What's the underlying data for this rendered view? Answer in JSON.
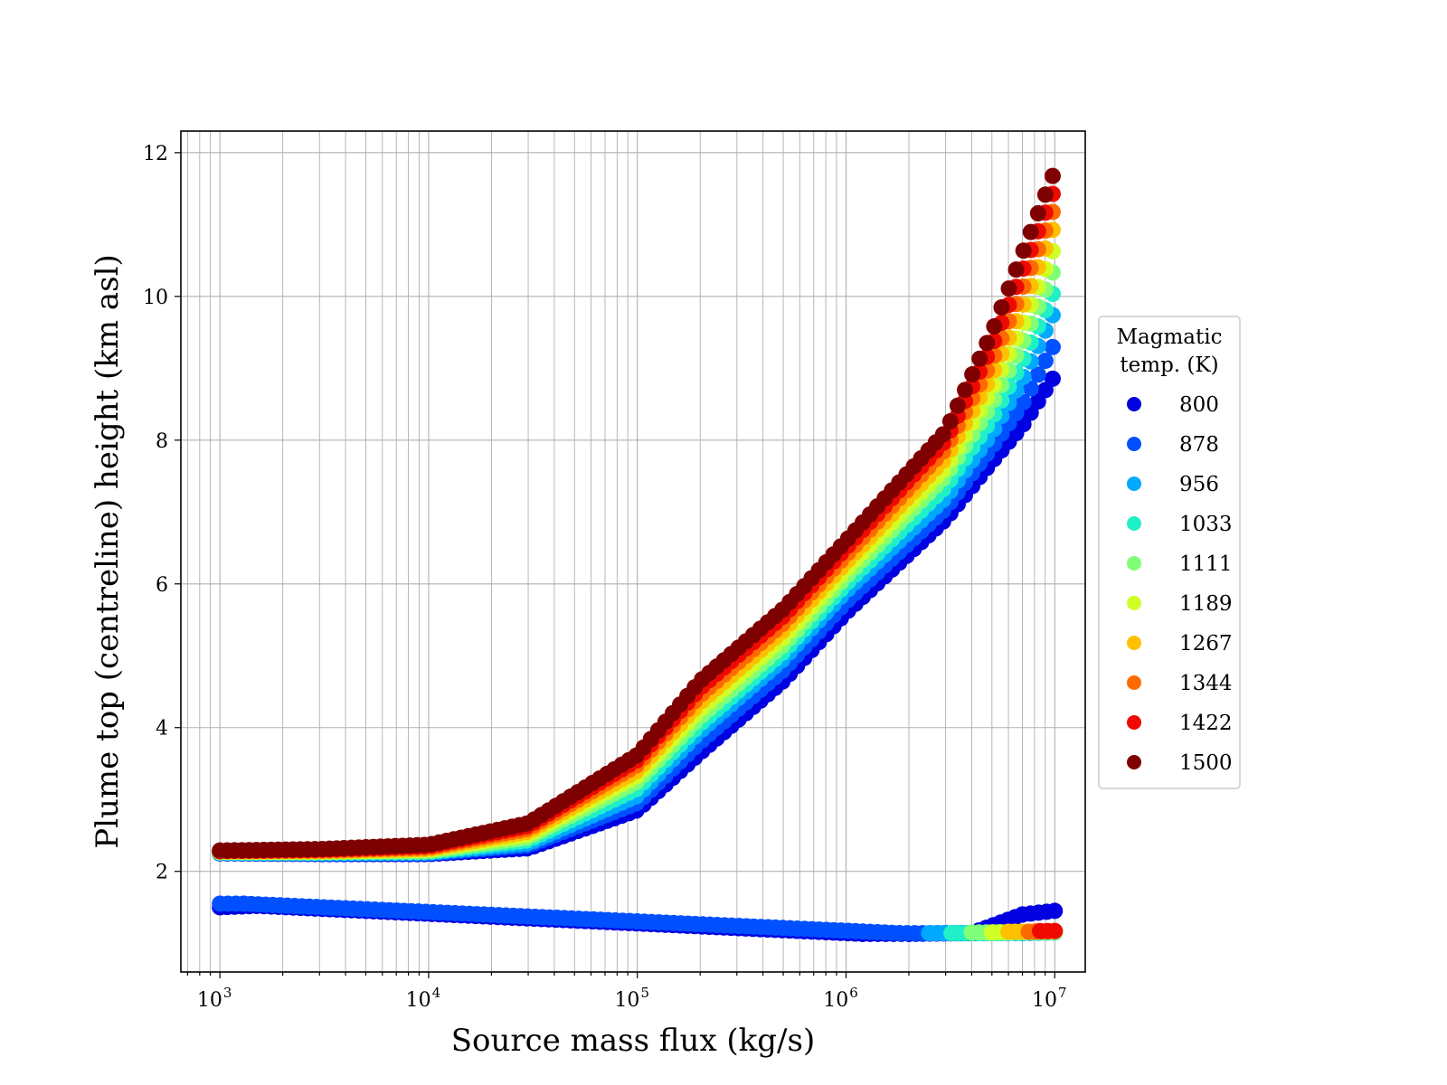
{
  "chart_data": {
    "type": "scatter",
    "xlabel": "Source mass flux (kg/s)",
    "ylabel": "Plume top (centreline) height (km asl)",
    "x_scale": "log",
    "xlim": [
      650,
      14000000
    ],
    "ylim": [
      0.6,
      12.3
    ],
    "x_ticks": [
      1000,
      10000,
      100000,
      1000000,
      10000000
    ],
    "x_tick_labels": [
      "10",
      "10",
      "10",
      "10",
      "10"
    ],
    "x_tick_exponents": [
      "3",
      "4",
      "5",
      "6",
      "7"
    ],
    "y_ticks": [
      2,
      4,
      6,
      8,
      10,
      12
    ],
    "y_tick_labels": [
      "2",
      "4",
      "6",
      "8",
      "10",
      "12"
    ],
    "grid": true,
    "legend": {
      "title": "Magmatic temp. (K)",
      "title_lines": [
        "Magmatic",
        "temp. (K)"
      ],
      "placement": "right, outside plot",
      "entries": [
        "800",
        "878",
        "956",
        "1033",
        "1111",
        "1189",
        "1267",
        "1344",
        "1422",
        "1500"
      ]
    },
    "series": [
      {
        "name": "800",
        "color": "#0000e0",
        "x": [
          1000,
          3000,
          10000,
          30000,
          100000,
          200000,
          500000,
          1000000,
          3000000,
          5000000,
          7000000,
          10000000
        ],
        "y": [
          2.25,
          2.24,
          2.24,
          2.32,
          2.85,
          3.65,
          4.65,
          5.6,
          6.9,
          7.7,
          8.2,
          8.9
        ],
        "low_x": [
          1000,
          1500,
          1200000,
          2000000,
          4000000,
          7000000,
          10000000
        ],
        "low_y": [
          1.5,
          1.52,
          1.13,
          1.13,
          1.14,
          1.4,
          1.45
        ]
      },
      {
        "name": "878",
        "color": "#0050ff",
        "x": [
          1000,
          3000,
          10000,
          30000,
          100000,
          200000,
          500000,
          1000000,
          3000000,
          5000000,
          7000000,
          10000000
        ],
        "y": [
          2.25,
          2.25,
          2.25,
          2.36,
          2.95,
          3.8,
          4.8,
          5.75,
          7.05,
          7.9,
          8.5,
          9.35
        ],
        "low_x": [
          1000,
          1300,
          1800000,
          3000000,
          5000000,
          10000000
        ],
        "low_y": [
          1.55,
          1.55,
          1.14,
          1.14,
          1.14,
          1.16
        ]
      },
      {
        "name": "956",
        "color": "#00a8ff",
        "x": [
          1000,
          3000,
          10000,
          30000,
          100000,
          200000,
          500000,
          1000000,
          3000000,
          5000000,
          7000000,
          10000000
        ],
        "y": [
          2.26,
          2.25,
          2.26,
          2.39,
          3.05,
          3.95,
          4.95,
          5.9,
          7.2,
          8.1,
          8.85,
          9.8
        ],
        "low_x": [
          2500000,
          4000000,
          7000000,
          10000000
        ],
        "low_y": [
          1.14,
          1.14,
          1.14,
          1.15
        ]
      },
      {
        "name": "1033",
        "color": "#20f0c8",
        "x": [
          1000,
          3000,
          10000,
          30000,
          100000,
          200000,
          500000,
          1000000,
          3000000,
          5000000,
          7000000,
          10000000
        ],
        "y": [
          2.26,
          2.26,
          2.27,
          2.43,
          3.15,
          4.05,
          5.05,
          6.0,
          7.35,
          8.3,
          9.1,
          10.1
        ],
        "low_x": [
          3200000,
          5000000,
          8000000,
          10000000
        ],
        "low_y": [
          1.14,
          1.14,
          1.15,
          1.15
        ]
      },
      {
        "name": "1111",
        "color": "#80ff78",
        "x": [
          1000,
          3000,
          10000,
          30000,
          100000,
          200000,
          500000,
          1000000,
          3000000,
          5000000,
          7000000,
          10000000
        ],
        "y": [
          2.27,
          2.27,
          2.28,
          2.47,
          3.25,
          4.15,
          5.15,
          6.1,
          7.5,
          8.5,
          9.35,
          10.4
        ],
        "low_x": [
          4000000,
          6000000,
          10000000
        ],
        "low_y": [
          1.15,
          1.15,
          1.16
        ]
      },
      {
        "name": "1189",
        "color": "#d0ff28",
        "x": [
          1000,
          3000,
          10000,
          30000,
          100000,
          200000,
          500000,
          1000000,
          3000000,
          5000000,
          7000000,
          10000000
        ],
        "y": [
          2.27,
          2.27,
          2.3,
          2.51,
          3.33,
          4.25,
          5.25,
          6.2,
          7.62,
          8.7,
          9.6,
          10.7
        ],
        "low_x": [
          5000000,
          7000000,
          10000000
        ],
        "low_y": [
          1.15,
          1.16,
          1.16
        ]
      },
      {
        "name": "1267",
        "color": "#ffc000",
        "x": [
          1000,
          3000,
          10000,
          30000,
          100000,
          200000,
          500000,
          1000000,
          3000000,
          5000000,
          7000000,
          10000000
        ],
        "y": [
          2.28,
          2.28,
          2.31,
          2.55,
          3.4,
          4.35,
          5.35,
          6.3,
          7.75,
          8.9,
          9.85,
          11.0
        ],
        "low_x": [
          6000000,
          8000000,
          10000000
        ],
        "low_y": [
          1.16,
          1.16,
          1.17
        ]
      },
      {
        "name": "1344",
        "color": "#ff6a00",
        "x": [
          1000,
          3000,
          10000,
          30000,
          100000,
          200000,
          500000,
          1000000,
          3000000,
          5000000,
          7000000,
          10000000
        ],
        "y": [
          2.28,
          2.29,
          2.33,
          2.59,
          3.48,
          4.45,
          5.45,
          6.4,
          7.88,
          9.1,
          10.1,
          11.25
        ],
        "low_x": [
          7500000,
          10000000
        ],
        "low_y": [
          1.16,
          1.17
        ]
      },
      {
        "name": "1422",
        "color": "#ee0a00",
        "x": [
          1000,
          3000,
          10000,
          30000,
          100000,
          200000,
          500000,
          1000000,
          3000000,
          5000000,
          7000000,
          10000000
        ],
        "y": [
          2.28,
          2.3,
          2.35,
          2.63,
          3.55,
          4.55,
          5.55,
          6.5,
          8.0,
          9.3,
          10.35,
          11.5
        ],
        "low_x": [
          8500000,
          10000000
        ],
        "low_y": [
          1.17,
          1.17
        ]
      },
      {
        "name": "1500",
        "color": "#7f0000",
        "x": [
          1000,
          3000,
          10000,
          30000,
          100000,
          200000,
          500000,
          1000000,
          3000000,
          5000000,
          7000000,
          10000000
        ],
        "y": [
          2.29,
          2.31,
          2.37,
          2.67,
          3.62,
          4.65,
          5.65,
          6.6,
          8.12,
          9.5,
          10.6,
          11.75
        ],
        "low_x": [],
        "low_y": []
      }
    ]
  }
}
